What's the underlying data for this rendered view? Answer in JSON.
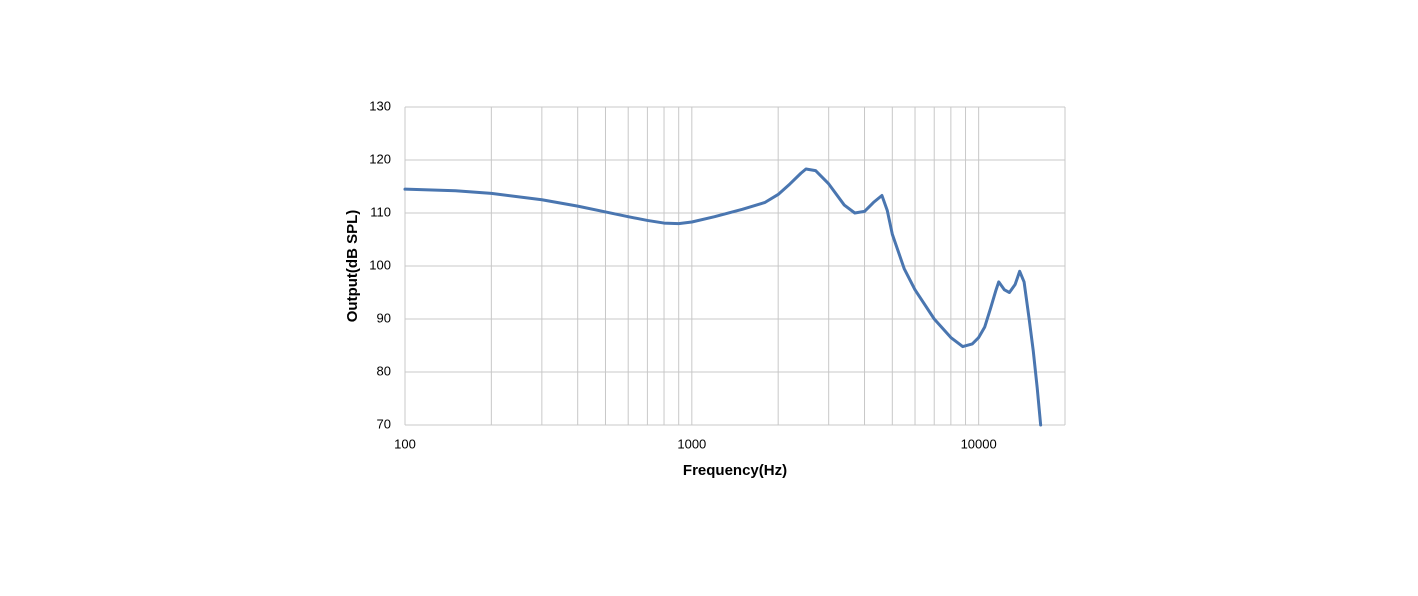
{
  "chart_data": {
    "type": "line",
    "x_label": "Frequency(Hz)",
    "y_label": "Output(dB SPL)",
    "x_scale": "log",
    "grid": true,
    "minor_grid": true,
    "xlim": [
      100,
      20000
    ],
    "xticks": [
      100,
      1000,
      10000
    ],
    "ylim": [
      70,
      130
    ],
    "yticks": [
      70,
      80,
      90,
      100,
      110,
      120,
      130
    ],
    "series": [
      {
        "color": "#4a76b0",
        "x": [
          100,
          150,
          200,
          300,
          400,
          500,
          600,
          700,
          800,
          900,
          1000,
          1200,
          1500,
          1800,
          2000,
          2200,
          2400,
          2500,
          2700,
          3000,
          3400,
          3700,
          4000,
          4300,
          4600,
          4800,
          5000,
          5500,
          6000,
          7000,
          8000,
          8800,
          9500,
          10000,
          10500,
          11000,
          11500,
          11750,
          12300,
          12800,
          13400,
          13900,
          14400,
          15000,
          15500,
          16000,
          16450
        ],
        "values": [
          114.5,
          114.2,
          113.7,
          112.5,
          111.3,
          110.2,
          109.3,
          108.6,
          108.1,
          108.0,
          108.3,
          109.3,
          110.7,
          112.0,
          113.5,
          115.5,
          117.5,
          118.3,
          118.0,
          115.5,
          111.5,
          110.0,
          110.3,
          112.0,
          113.3,
          110.5,
          106.0,
          99.5,
          95.5,
          90.0,
          86.5,
          84.8,
          85.3,
          86.5,
          88.5,
          92.0,
          95.5,
          97.0,
          95.5,
          95.0,
          96.5,
          99.0,
          97.0,
          90.0,
          84.0,
          77.0,
          70.0
        ]
      }
    ]
  }
}
